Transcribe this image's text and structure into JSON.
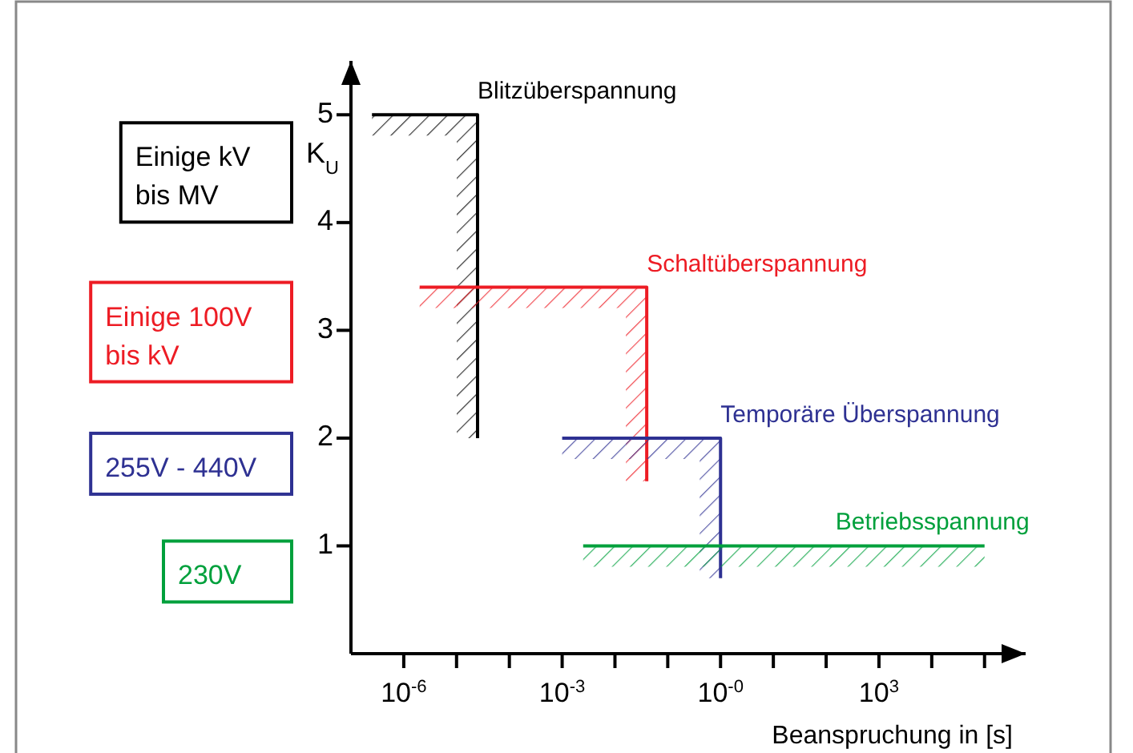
{
  "chart_data": {
    "type": "line",
    "xlabel": "Beanspruchung in [s]",
    "ylabel": "K$_{U}$",
    "log": "x",
    "grid": false,
    "marker": "none",
    "line_style": "solid",
    "xlim": [
      1e-07,
      600000.0
    ],
    "ylim": [
      0,
      5.5
    ],
    "xticks": [
      {
        "value": 1e-06,
        "label": "10$^{-6}$"
      },
      {
        "value": 1e-05,
        "label": null
      },
      {
        "value": 0.0001,
        "label": null
      },
      {
        "value": 0.001,
        "label": "10$^{-3}$"
      },
      {
        "value": 0.01,
        "label": null
      },
      {
        "value": 0.1,
        "label": null
      },
      {
        "value": 1,
        "label": "10$^{-0}$"
      },
      {
        "value": 10,
        "label": null
      },
      {
        "value": 100,
        "label": null
      },
      {
        "value": 1000,
        "label": "10$^{3}$"
      },
      {
        "value": 10000.0,
        "label": null
      },
      {
        "value": 100000.0,
        "label": null
      }
    ],
    "yticks": [
      1,
      2,
      3,
      4,
      5
    ],
    "series": [
      {
        "name": "Blitzüberspannung",
        "color": "#000000",
        "x": [
          2.5e-07,
          2.5e-05,
          2.5e-05
        ],
        "values": [
          5,
          5,
          2
        ]
      },
      {
        "name": "Schaltüberspannung",
        "color": "#ed1c24",
        "x": [
          2e-06,
          0.04,
          0.04
        ],
        "values": [
          3.4,
          3.4,
          1.6
        ]
      },
      {
        "name": "Temporäre Überspannung",
        "color": "#2e3192",
        "x": [
          0.001,
          1,
          1
        ],
        "values": [
          2,
          2,
          0.7
        ]
      },
      {
        "name": "Betriebsspannung",
        "color": "#00a03c",
        "x": [
          0.0025,
          100000
        ],
        "values": [
          1,
          1
        ]
      }
    ],
    "annotations": [
      "Einige kV\nbis MV",
      "Einige 100V\nbis kV",
      "255V - 440V",
      "230V"
    ]
  }
}
